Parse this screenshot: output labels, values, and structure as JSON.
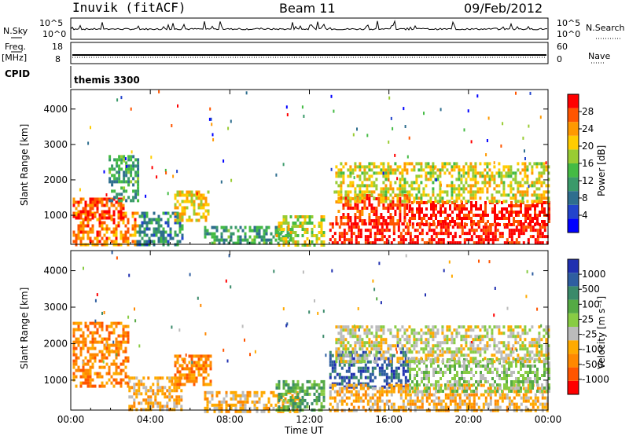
{
  "header": {
    "title": "Inuvik (fitACF)",
    "beam": "Beam 11",
    "date": "09/Feb/2012"
  },
  "top_panels": {
    "nsky_label": "N.Sky",
    "nsearch_label": "N.Search",
    "nsky_ticks": [
      "10^5",
      "10^0"
    ],
    "nsearch_ticks": [
      "10^5",
      "10^0"
    ],
    "freq_label": "Freq.",
    "freq_unit": "[MHz]",
    "freq_ticks": [
      "18",
      "8"
    ],
    "nave_label": "Nave",
    "nave_ticks": [
      "60",
      "0"
    ],
    "cpid_label": "CPID",
    "cpid_value": "themis 3300"
  },
  "colors": {
    "power_scale": [
      "#0000ff",
      "#2244cc",
      "#2e6e8e",
      "#3a9a6a",
      "#44bb44",
      "#99cc33",
      "#ffcc00",
      "#ff9900",
      "#ff5500",
      "#ff0000"
    ],
    "velocity_scale": [
      "#2030b0",
      "#2e5ea0",
      "#3a8a6a",
      "#55aa44",
      "#88cc44",
      "#bbbbbb",
      "#ffaa00",
      "#ff8800",
      "#ff5500",
      "#ff0000"
    ]
  },
  "chart_data": [
    {
      "type": "heatmap",
      "name": "power",
      "ylabel": "Slant Range [km]",
      "yticks": [
        "1000",
        "2000",
        "3000",
        "4000"
      ],
      "ylim": [
        180,
        4550
      ],
      "colorbar_label": "Power [dB]",
      "colorbar_ticks": [
        "4",
        "8",
        "12",
        "16",
        "20",
        "24",
        "28"
      ],
      "clim": [
        0,
        30
      ],
      "x_ticks": [
        "00:00",
        "04:00",
        "08:00",
        "12:00",
        "16:00",
        "20:00",
        "00:00"
      ],
      "xlim_hours": [
        0,
        24
      ],
      "regions": [
        {
          "t0": 0.1,
          "t1": 3.4,
          "r0": 180,
          "r1": 1100,
          "level": 22
        },
        {
          "t0": 0.1,
          "t1": 2.7,
          "r0": 900,
          "r1": 1500,
          "level": 25
        },
        {
          "t0": 1.9,
          "t1": 3.4,
          "r0": 1400,
          "r1": 2700,
          "level": 10
        },
        {
          "t0": 3.3,
          "t1": 5.6,
          "r0": 180,
          "r1": 1100,
          "level": 8
        },
        {
          "t0": 5.2,
          "t1": 6.9,
          "r0": 850,
          "r1": 1700,
          "level": 18
        },
        {
          "t0": 6.7,
          "t1": 11.2,
          "r0": 180,
          "r1": 700,
          "level": 10
        },
        {
          "t0": 10.3,
          "t1": 12.7,
          "r0": 180,
          "r1": 1000,
          "level": 16
        },
        {
          "t0": 13.0,
          "t1": 24.0,
          "r0": 180,
          "r1": 800,
          "level": 27
        },
        {
          "t0": 13.3,
          "t1": 17.0,
          "r0": 800,
          "r1": 1600,
          "level": 26
        },
        {
          "t0": 17.0,
          "t1": 24.0,
          "r0": 700,
          "r1": 1400,
          "level": 27
        },
        {
          "t0": 13.3,
          "t1": 24.0,
          "r0": 1400,
          "r1": 2500,
          "level": 17
        }
      ]
    },
    {
      "type": "heatmap",
      "name": "velocity",
      "ylabel": "Slant Range [km]",
      "yticks": [
        "1000",
        "2000",
        "3000",
        "4000"
      ],
      "ylim": [
        180,
        4550
      ],
      "colorbar_label": "Velocity [m s⁻¹]",
      "colorbar_ticks": [
        "1000",
        "500",
        "100",
        "25",
        "-25",
        "-100",
        "-500",
        "-1000"
      ],
      "x_ticks": [
        "00:00",
        "04:00",
        "08:00",
        "12:00",
        "16:00",
        "20:00",
        "00:00"
      ],
      "xlim_hours": [
        0,
        24
      ],
      "xlabel": "Time UT",
      "regions": [
        {
          "t0": 0.1,
          "t1": 2.9,
          "r0": 800,
          "r1": 2600,
          "level": 7
        },
        {
          "t0": 2.9,
          "t1": 5.6,
          "r0": 180,
          "r1": 1100,
          "level": 6
        },
        {
          "t0": 5.2,
          "t1": 7.0,
          "r0": 850,
          "r1": 1700,
          "level": 7
        },
        {
          "t0": 6.7,
          "t1": 11.5,
          "r0": 180,
          "r1": 700,
          "level": 6
        },
        {
          "t0": 10.3,
          "t1": 12.7,
          "r0": 180,
          "r1": 1000,
          "level": 3
        },
        {
          "t0": 13.0,
          "t1": 17.0,
          "r0": 800,
          "r1": 1800,
          "level": 1
        },
        {
          "t0": 13.0,
          "t1": 24.0,
          "r0": 180,
          "r1": 900,
          "level": 6
        },
        {
          "t0": 17.0,
          "t1": 24.0,
          "r0": 700,
          "r1": 1600,
          "level": 4
        },
        {
          "t0": 13.3,
          "t1": 24.0,
          "r0": 1500,
          "r1": 2500,
          "level": 5
        }
      ]
    }
  ]
}
